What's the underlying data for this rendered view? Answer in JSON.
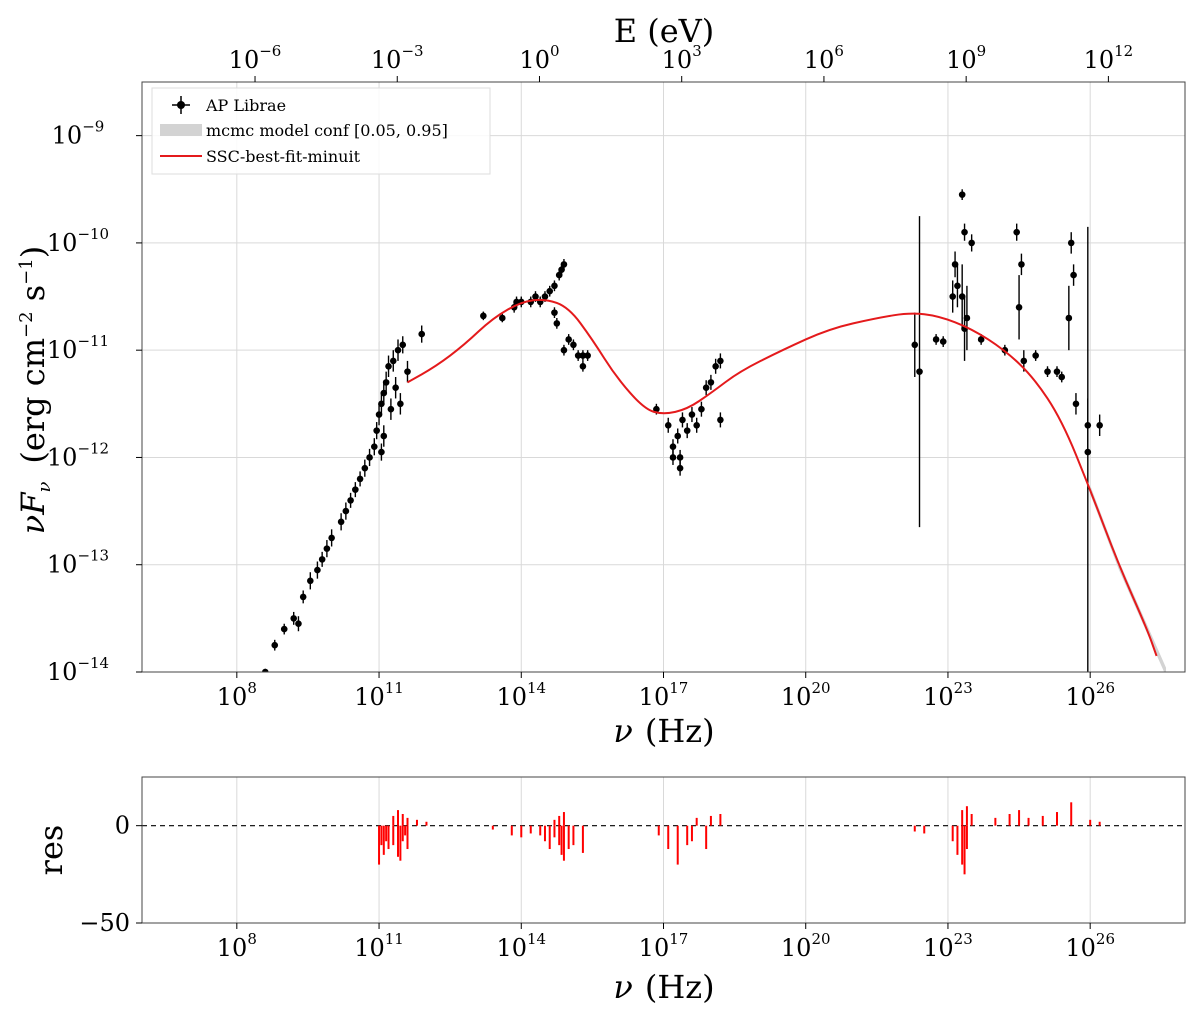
{
  "chart_data": [
    {
      "type": "scatter",
      "x_scale": "log",
      "y_scale": "log",
      "xlim_log10": [
        6.0,
        28.0
      ],
      "ylim_log10": [
        -14.0,
        -8.5
      ],
      "xlabel_sym": "ν",
      "xlabel_unit": "(Hz)",
      "ylabel_sym": "νF",
      "ylabel_sub": "ν",
      "ylabel_unit": "(erg cm",
      "ylabel_unit_exp1": "−2",
      "ylabel_unit_mid": " s",
      "ylabel_unit_exp2": "−1",
      "ylabel_unit_close": ")",
      "top_axis_label": "E (eV)",
      "x_ticks": [
        {
          "base": "10",
          "exp": "8",
          "v": 8
        },
        {
          "base": "10",
          "exp": "11",
          "v": 11
        },
        {
          "base": "10",
          "exp": "14",
          "v": 14
        },
        {
          "base": "10",
          "exp": "17",
          "v": 17
        },
        {
          "base": "10",
          "exp": "20",
          "v": 20
        },
        {
          "base": "10",
          "exp": "23",
          "v": 23
        },
        {
          "base": "10",
          "exp": "26",
          "v": 26
        }
      ],
      "y_ticks": [
        {
          "base": "10",
          "exp": "−9",
          "v": -9
        },
        {
          "base": "10",
          "exp": "−10",
          "v": -10
        },
        {
          "base": "10",
          "exp": "−11",
          "v": -11
        },
        {
          "base": "10",
          "exp": "−12",
          "v": -12
        },
        {
          "base": "10",
          "exp": "−13",
          "v": -13
        },
        {
          "base": "10",
          "exp": "−14",
          "v": -14
        }
      ],
      "top_ticks": [
        {
          "base": "10",
          "exp": "−6",
          "v": -6
        },
        {
          "base": "10",
          "exp": "−3",
          "v": -3
        },
        {
          "base": "10",
          "exp": "0",
          "v": 0
        },
        {
          "base": "10",
          "exp": "3",
          "v": 3
        },
        {
          "base": "10",
          "exp": "6",
          "v": 6
        },
        {
          "base": "10",
          "exp": "9",
          "v": 9
        },
        {
          "base": "10",
          "exp": "12",
          "v": 12
        }
      ],
      "grid": true,
      "legend_position": "upper-left",
      "legend": [
        {
          "label": "AP Librae",
          "kind": "errorbar-marker",
          "color": "#000000"
        },
        {
          "label": "mcmc model conf [0.05, 0.95]",
          "kind": "band",
          "color": "#d3d3d3"
        },
        {
          "label": "SSC-best-fit-minuit",
          "kind": "line",
          "color": "#e41a1c"
        }
      ],
      "series": [
        {
          "name": "AP Librae",
          "color": "#000000",
          "points": [
            [
              8.6,
              -14.0,
              0.03
            ],
            [
              8.8,
              -13.75,
              0.05
            ],
            [
              9.0,
              -13.6,
              0.05
            ],
            [
              9.2,
              -13.5,
              0.06
            ],
            [
              9.3,
              -13.55,
              0.07
            ],
            [
              9.4,
              -13.3,
              0.06
            ],
            [
              9.55,
              -13.15,
              0.08
            ],
            [
              9.7,
              -13.05,
              0.08
            ],
            [
              9.8,
              -12.95,
              0.07
            ],
            [
              9.9,
              -12.85,
              0.08
            ],
            [
              10.0,
              -12.75,
              0.08
            ],
            [
              10.2,
              -12.6,
              0.08
            ],
            [
              10.3,
              -12.5,
              0.08
            ],
            [
              10.4,
              -12.4,
              0.07
            ],
            [
              10.5,
              -12.3,
              0.07
            ],
            [
              10.6,
              -12.2,
              0.07
            ],
            [
              10.7,
              -12.1,
              0.08
            ],
            [
              10.8,
              -12.0,
              0.08
            ],
            [
              10.9,
              -11.9,
              0.08
            ],
            [
              10.95,
              -11.75,
              0.08
            ],
            [
              11.0,
              -11.6,
              0.1
            ],
            [
              11.05,
              -11.5,
              0.1
            ],
            [
              11.1,
              -11.4,
              0.1
            ],
            [
              11.15,
              -11.3,
              0.1
            ],
            [
              11.2,
              -11.15,
              0.1
            ],
            [
              11.3,
              -11.1,
              0.1
            ],
            [
              11.4,
              -11.0,
              0.1
            ],
            [
              11.5,
              -10.95,
              0.08
            ],
            [
              11.6,
              -11.2,
              0.1
            ],
            [
              11.45,
              -11.5,
              0.1
            ],
            [
              11.35,
              -11.35,
              0.1
            ],
            [
              11.1,
              -11.8,
              0.1
            ],
            [
              11.25,
              -11.55,
              0.1
            ],
            [
              11.9,
              -10.85,
              0.08
            ],
            [
              11.05,
              -11.95,
              0.08
            ],
            [
              13.2,
              -10.68,
              0.04
            ],
            [
              13.6,
              -10.7,
              0.04
            ],
            [
              13.85,
              -10.6,
              0.05
            ],
            [
              13.9,
              -10.55,
              0.05
            ],
            [
              14.0,
              -10.55,
              0.05
            ],
            [
              14.2,
              -10.55,
              0.05
            ],
            [
              14.3,
              -10.5,
              0.05
            ],
            [
              14.4,
              -10.55,
              0.05
            ],
            [
              14.5,
              -10.5,
              0.05
            ],
            [
              14.6,
              -10.45,
              0.05
            ],
            [
              14.7,
              -10.4,
              0.05
            ],
            [
              14.8,
              -10.3,
              0.05
            ],
            [
              14.85,
              -10.25,
              0.05
            ],
            [
              14.9,
              -10.2,
              0.05
            ],
            [
              14.7,
              -10.65,
              0.05
            ],
            [
              14.75,
              -10.75,
              0.05
            ],
            [
              14.9,
              -11.0,
              0.05
            ],
            [
              15.0,
              -10.9,
              0.05
            ],
            [
              15.1,
              -10.95,
              0.05
            ],
            [
              15.2,
              -11.05,
              0.05
            ],
            [
              15.3,
              -11.05,
              0.05
            ],
            [
              15.4,
              -11.05,
              0.05
            ],
            [
              15.3,
              -11.15,
              0.05
            ],
            [
              16.85,
              -11.55,
              0.05
            ],
            [
              17.1,
              -11.7,
              0.07
            ],
            [
              17.2,
              -11.9,
              0.07
            ],
            [
              17.3,
              -11.8,
              0.07
            ],
            [
              17.35,
              -12.0,
              0.07
            ],
            [
              17.4,
              -11.65,
              0.07
            ],
            [
              17.5,
              -11.75,
              0.07
            ],
            [
              17.6,
              -11.6,
              0.07
            ],
            [
              17.7,
              -11.7,
              0.07
            ],
            [
              17.8,
              -11.55,
              0.07
            ],
            [
              17.9,
              -11.35,
              0.07
            ],
            [
              18.0,
              -11.3,
              0.07
            ],
            [
              18.1,
              -11.15,
              0.07
            ],
            [
              18.2,
              -11.1,
              0.07
            ],
            [
              17.2,
              -12.0,
              0.07
            ],
            [
              17.35,
              -12.1,
              0.07
            ],
            [
              18.2,
              -11.65,
              0.07
            ],
            [
              22.3,
              -10.95,
              0.3
            ],
            [
              22.4,
              -11.2,
              1.45
            ],
            [
              22.75,
              -10.9,
              0.05
            ],
            [
              22.9,
              -10.92,
              0.05
            ],
            [
              23.1,
              -10.5,
              0.15
            ],
            [
              23.15,
              -10.2,
              0.12
            ],
            [
              23.2,
              -10.4,
              0.2
            ],
            [
              23.3,
              -10.5,
              0.3
            ],
            [
              23.35,
              -10.8,
              0.3
            ],
            [
              23.4,
              -10.7,
              0.3
            ],
            [
              23.3,
              -9.55,
              0.05
            ],
            [
              23.35,
              -9.9,
              0.08
            ],
            [
              23.5,
              -10.0,
              0.08
            ],
            [
              23.7,
              -10.9,
              0.05
            ],
            [
              24.2,
              -11.0,
              0.05
            ],
            [
              24.5,
              -10.6,
              0.3
            ],
            [
              24.45,
              -9.9,
              0.08
            ],
            [
              24.55,
              -10.2,
              0.1
            ],
            [
              24.6,
              -11.1,
              0.1
            ],
            [
              24.85,
              -11.05,
              0.05
            ],
            [
              25.1,
              -11.2,
              0.05
            ],
            [
              25.3,
              -11.2,
              0.05
            ],
            [
              25.4,
              -11.25,
              0.05
            ],
            [
              25.55,
              -10.7,
              0.3
            ],
            [
              25.6,
              -10.0,
              0.1
            ],
            [
              25.65,
              -10.3,
              0.1
            ],
            [
              25.7,
              -11.5,
              0.1
            ],
            [
              25.95,
              -11.7,
              0.25
            ],
            [
              25.95,
              -11.95,
              2.1
            ],
            [
              26.2,
              -11.7,
              0.1
            ]
          ]
        },
        {
          "name": "SSC-best-fit-minuit",
          "color": "#e41a1c",
          "curve": [
            [
              11.6,
              -11.3
            ],
            [
              12.2,
              -11.15
            ],
            [
              12.8,
              -10.95
            ],
            [
              13.4,
              -10.7
            ],
            [
              14.0,
              -10.55
            ],
            [
              14.5,
              -10.52
            ],
            [
              15.0,
              -10.6
            ],
            [
              15.5,
              -10.9
            ],
            [
              16.0,
              -11.25
            ],
            [
              16.6,
              -11.55
            ],
            [
              17.0,
              -11.6
            ],
            [
              17.5,
              -11.55
            ],
            [
              18.0,
              -11.4
            ],
            [
              18.6,
              -11.2
            ],
            [
              19.5,
              -11.0
            ],
            [
              20.5,
              -10.8
            ],
            [
              21.5,
              -10.7
            ],
            [
              22.2,
              -10.65
            ],
            [
              22.8,
              -10.68
            ],
            [
              23.5,
              -10.8
            ],
            [
              24.2,
              -11.0
            ],
            [
              24.8,
              -11.25
            ],
            [
              25.4,
              -11.65
            ],
            [
              26.0,
              -12.3
            ],
            [
              26.6,
              -13.0
            ],
            [
              27.2,
              -13.6
            ],
            [
              27.4,
              -13.85
            ]
          ]
        },
        {
          "name": "mcmc model conf [0.05, 0.95]",
          "color": "#d3d3d3",
          "curve": [
            [
              26.0,
              -12.3
            ],
            [
              26.6,
              -13.0
            ],
            [
              27.2,
              -13.6
            ],
            [
              27.6,
              -14.0
            ]
          ]
        }
      ]
    },
    {
      "type": "bar",
      "x_scale": "log",
      "xlim_log10": [
        6.0,
        28.0
      ],
      "ylim": [
        -50,
        25
      ],
      "ylabel": "res",
      "xlabel_sym": "ν",
      "xlabel_unit": "(Hz)",
      "y_ticks": [
        {
          "label": "0",
          "v": 0
        },
        {
          "label": "−50",
          "v": -50
        }
      ],
      "x_ticks": [
        {
          "base": "10",
          "exp": "8",
          "v": 8
        },
        {
          "base": "10",
          "exp": "11",
          "v": 11
        },
        {
          "base": "10",
          "exp": "14",
          "v": 14
        },
        {
          "base": "10",
          "exp": "17",
          "v": 17
        },
        {
          "base": "10",
          "exp": "20",
          "v": 20
        },
        {
          "base": "10",
          "exp": "23",
          "v": 23
        },
        {
          "base": "10",
          "exp": "26",
          "v": 26
        }
      ],
      "zero_line": true,
      "color": "#ff0000",
      "residuals": [
        [
          11.0,
          -20
        ],
        [
          11.05,
          -10
        ],
        [
          11.1,
          -15
        ],
        [
          11.15,
          -8
        ],
        [
          11.2,
          -12
        ],
        [
          11.3,
          -10
        ],
        [
          11.4,
          -16
        ],
        [
          11.45,
          -18
        ],
        [
          11.5,
          -8
        ],
        [
          11.55,
          -5
        ],
        [
          11.6,
          -12
        ],
        [
          11.3,
          5
        ],
        [
          11.4,
          8
        ],
        [
          11.5,
          6
        ],
        [
          11.6,
          4
        ],
        [
          11.8,
          3
        ],
        [
          12.0,
          2
        ],
        [
          13.4,
          -2
        ],
        [
          13.8,
          -5
        ],
        [
          14.0,
          -6
        ],
        [
          14.2,
          -4
        ],
        [
          14.4,
          -5
        ],
        [
          14.5,
          -8
        ],
        [
          14.6,
          -12
        ],
        [
          14.7,
          -6
        ],
        [
          14.8,
          -10
        ],
        [
          14.85,
          -15
        ],
        [
          14.9,
          -18
        ],
        [
          15.0,
          -12
        ],
        [
          15.1,
          -10
        ],
        [
          15.3,
          -14
        ],
        [
          14.7,
          3
        ],
        [
          14.8,
          5
        ],
        [
          14.9,
          7
        ],
        [
          16.9,
          -5
        ],
        [
          17.1,
          -12
        ],
        [
          17.3,
          -20
        ],
        [
          17.5,
          -10
        ],
        [
          17.6,
          -8
        ],
        [
          17.9,
          -12
        ],
        [
          17.7,
          4
        ],
        [
          18.0,
          5
        ],
        [
          18.2,
          6
        ],
        [
          22.3,
          -3
        ],
        [
          22.5,
          -4
        ],
        [
          23.1,
          -8
        ],
        [
          23.2,
          -15
        ],
        [
          23.3,
          -20
        ],
        [
          23.35,
          -25
        ],
        [
          23.4,
          -12
        ],
        [
          23.3,
          8
        ],
        [
          23.4,
          10
        ],
        [
          23.5,
          6
        ],
        [
          24.0,
          4
        ],
        [
          24.3,
          6
        ],
        [
          24.5,
          8
        ],
        [
          24.7,
          4
        ],
        [
          25.0,
          5
        ],
        [
          25.3,
          7
        ],
        [
          25.6,
          12
        ],
        [
          26.0,
          3
        ],
        [
          26.2,
          2
        ]
      ]
    }
  ]
}
